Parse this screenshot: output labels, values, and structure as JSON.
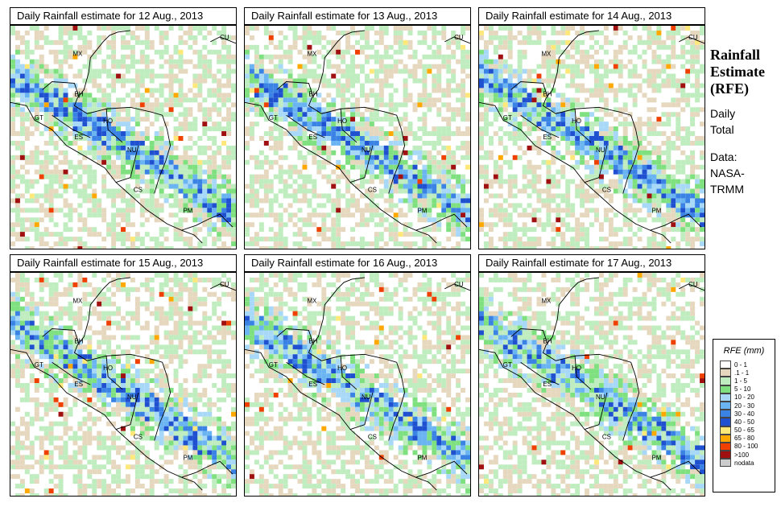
{
  "panels": [
    {
      "title": "Daily Rainfall estimate for  12 Aug., 2013",
      "seed": 12
    },
    {
      "title": "Daily Rainfall estimate for  13 Aug., 2013",
      "seed": 13
    },
    {
      "title": "Daily Rainfall estimate for  14 Aug., 2013",
      "seed": 14
    },
    {
      "title": "Daily Rainfall estimate for  15 Aug., 2013",
      "seed": 15
    },
    {
      "title": "Daily Rainfall estimate for  16 Aug., 2013",
      "seed": 16
    },
    {
      "title": "Daily Rainfall estimate for  17 Aug., 2013",
      "seed": 17
    }
  ],
  "region_labels": [
    "MX",
    "BH",
    "GT",
    "HO",
    "ES",
    "NU",
    "CS",
    "PM",
    "CU"
  ],
  "sidebar": {
    "title_line1": "Rainfall",
    "title_line2": "Estimate",
    "title_line3": "(RFE)",
    "line1": "Daily",
    "line2": "Total",
    "line3": "Data:",
    "line4": "NASA-",
    "line5": "TRMM"
  },
  "legend": {
    "title": "RFE (mm)",
    "items": [
      {
        "label": "0 - 1",
        "color": "#ffffff"
      },
      {
        "label": ".1 - 1",
        "color": "#e6d8bf"
      },
      {
        "label": "1 - 5",
        "color": "#bfedbf"
      },
      {
        "label": "5 - 10",
        "color": "#7fe07f"
      },
      {
        "label": "10 - 20",
        "color": "#a8d8f8"
      },
      {
        "label": "20 - 30",
        "color": "#6ab4f2"
      },
      {
        "label": "30 - 40",
        "color": "#3a82e4"
      },
      {
        "label": "40 - 50",
        "color": "#1e50d0"
      },
      {
        "label": "50 - 65",
        "color": "#ffe87a"
      },
      {
        "label": "65 - 80",
        "color": "#ffa800"
      },
      {
        "label": "80 - 100",
        "color": "#f04000"
      },
      {
        "label": ">100",
        "color": "#a01010"
      },
      {
        "label": "nodata",
        "color": "#cccccc"
      }
    ]
  }
}
